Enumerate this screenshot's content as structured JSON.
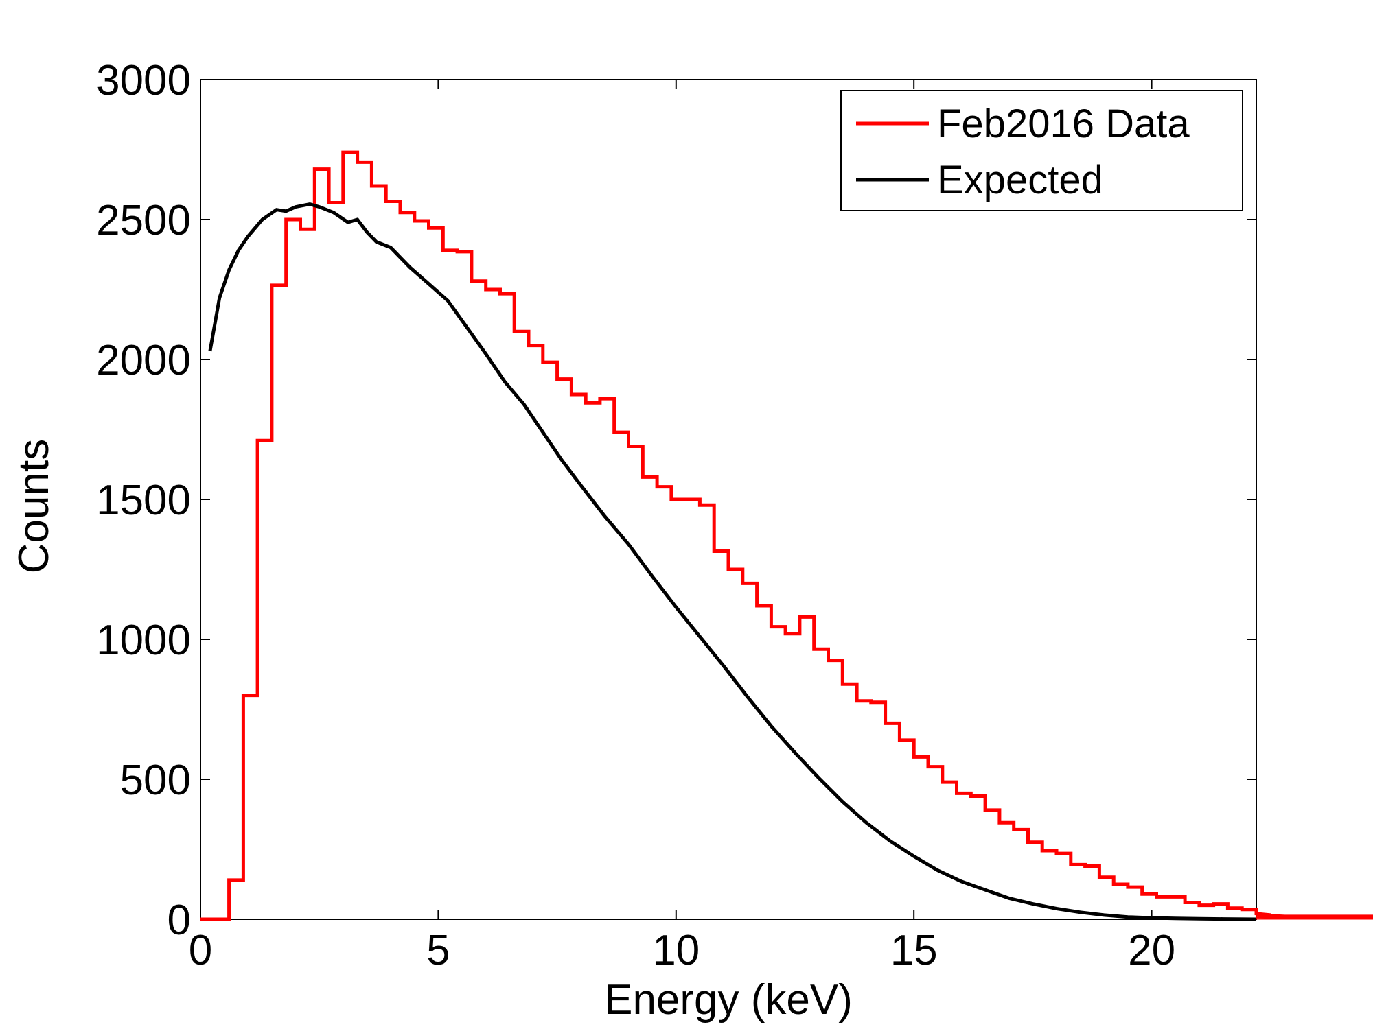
{
  "chart_data": {
    "type": "line",
    "title": "",
    "xlabel": "Energy (keV)",
    "ylabel": "Counts",
    "xlim": [
      0,
      22.2
    ],
    "ylim": [
      0,
      3000
    ],
    "xticks": [
      0,
      5,
      10,
      15,
      20
    ],
    "yticks": [
      0,
      500,
      1000,
      1500,
      2000,
      2500,
      3000
    ],
    "grid": false,
    "legend_position": "top-right",
    "series": [
      {
        "name": "Feb2016 Data",
        "style": "step",
        "color": "#ff0000",
        "bin_width": 0.3,
        "bin_start": 0,
        "values": [
          0,
          0,
          140,
          800,
          1710,
          2265,
          2500,
          2465,
          2680,
          2560,
          2740,
          2705,
          2620,
          2565,
          2525,
          2495,
          2470,
          2390,
          2385,
          2280,
          2250,
          2235,
          2100,
          2050,
          1990,
          1930,
          1875,
          1845,
          1860,
          1740,
          1690,
          1580,
          1545,
          1500,
          1500,
          1480,
          1315,
          1250,
          1200,
          1120,
          1045,
          1020,
          1080,
          965,
          925,
          840,
          780,
          775,
          700,
          640,
          580,
          545,
          490,
          450,
          440,
          390,
          345,
          320,
          275,
          245,
          235,
          195,
          190,
          150,
          125,
          115,
          90,
          80,
          80,
          60,
          50,
          55,
          40,
          35,
          20,
          15,
          10,
          10,
          8,
          8,
          5,
          5,
          5,
          5,
          5,
          5,
          5,
          5,
          5,
          10,
          8,
          5,
          5,
          5
        ]
      },
      {
        "name": "Expected",
        "style": "line",
        "color": "#000000",
        "x": [
          0.2,
          0.4,
          0.6,
          0.8,
          1.0,
          1.3,
          1.6,
          1.8,
          2.0,
          2.3,
          2.5,
          2.8,
          3.1,
          3.3,
          3.5,
          3.7,
          4.0,
          4.4,
          4.8,
          5.2,
          5.6,
          6.0,
          6.4,
          6.8,
          7.2,
          7.6,
          8.0,
          8.5,
          9.0,
          9.5,
          10.0,
          10.5,
          11.0,
          11.5,
          12.0,
          12.5,
          13.0,
          13.5,
          14.0,
          14.5,
          15.0,
          15.5,
          16.0,
          16.5,
          17.0,
          17.5,
          18.0,
          18.5,
          19.0,
          19.5,
          20.0,
          20.5,
          21.0,
          21.5,
          22.2
        ],
        "y": [
          2030,
          2220,
          2320,
          2390,
          2440,
          2500,
          2535,
          2530,
          2545,
          2555,
          2545,
          2525,
          2490,
          2500,
          2455,
          2420,
          2400,
          2330,
          2270,
          2210,
          2115,
          2020,
          1920,
          1840,
          1740,
          1640,
          1550,
          1440,
          1340,
          1225,
          1115,
          1010,
          905,
          795,
          690,
          595,
          505,
          420,
          345,
          280,
          225,
          175,
          135,
          105,
          75,
          55,
          38,
          25,
          15,
          8,
          5,
          3,
          2,
          1,
          0
        ]
      }
    ]
  }
}
